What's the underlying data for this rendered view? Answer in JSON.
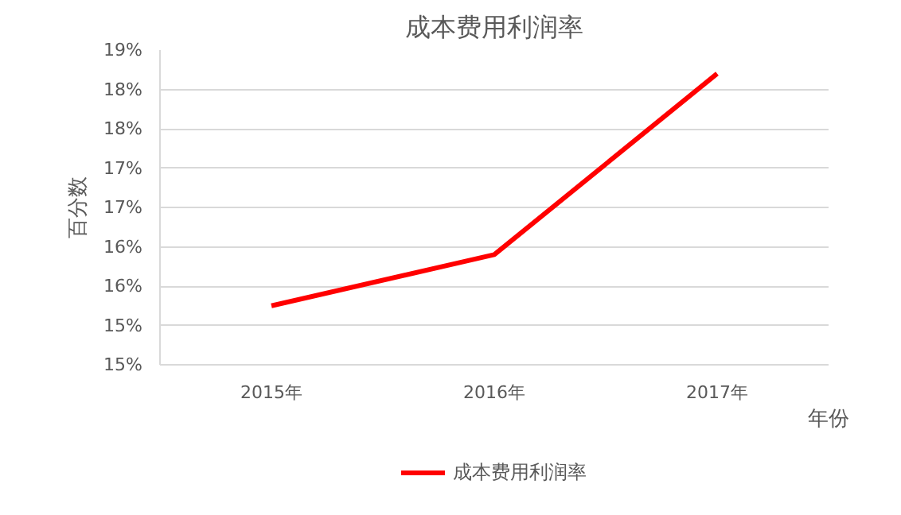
{
  "chart_data": {
    "type": "line",
    "title": "成本费用利润率",
    "xlabel": "年份",
    "ylabel": "百分数",
    "categories": [
      "2015年",
      "2016年",
      "2017年"
    ],
    "series": [
      {
        "name": "成本费用利润率",
        "color": "#ff0000",
        "values": [
          15.75,
          16.4,
          18.7
        ]
      }
    ],
    "ylim": [
      15,
      19
    ],
    "yticks": [
      {
        "value": 15,
        "label": "15%"
      },
      {
        "value": 15.5,
        "label": "15%"
      },
      {
        "value": 16,
        "label": "16%"
      },
      {
        "value": 16.5,
        "label": "16%"
      },
      {
        "value": 17,
        "label": "17%"
      },
      {
        "value": 17.5,
        "label": "17%"
      },
      {
        "value": 18,
        "label": "18%"
      },
      {
        "value": 18.5,
        "label": "18%"
      },
      {
        "value": 19,
        "label": "19%"
      }
    ],
    "grid": "y",
    "legend": "bottom",
    "marker": "none",
    "line_style": "solid"
  }
}
